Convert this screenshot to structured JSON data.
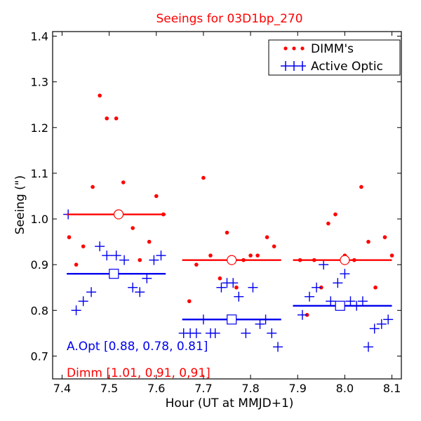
{
  "chart_data": {
    "type": "scatter",
    "title": "Seeings for 03D1bp_270",
    "xlabel": "Hour (UT at MMJD+1)",
    "ylabel": "Seeing (\")",
    "xlim": [
      7.38,
      8.12
    ],
    "ylim": [
      0.65,
      1.41
    ],
    "x_ticks": [
      "7.4",
      "7.5",
      "7.6",
      "7.7",
      "7.8",
      "7.9",
      "8.0",
      "8.1"
    ],
    "y_ticks": [
      "0.7",
      "0.8",
      "0.9",
      "1.0",
      "1.1",
      "1.2",
      "1.3",
      "1.4"
    ],
    "legend": {
      "position": "top-right",
      "entries": [
        "DIMM's",
        "Active Optic"
      ]
    },
    "colors": {
      "dimm": "#ff0000",
      "active_optic": "#0000ee"
    },
    "series": [
      {
        "name": "DIMM's",
        "marker": "dot",
        "points": [
          [
            7.415,
            0.96
          ],
          [
            7.43,
            0.9
          ],
          [
            7.445,
            0.94
          ],
          [
            7.465,
            1.07
          ],
          [
            7.48,
            1.27
          ],
          [
            7.495,
            1.22
          ],
          [
            7.515,
            1.22
          ],
          [
            7.53,
            1.08
          ],
          [
            7.55,
            0.98
          ],
          [
            7.565,
            0.91
          ],
          [
            7.585,
            0.95
          ],
          [
            7.6,
            1.05
          ],
          [
            7.615,
            1.01
          ],
          [
            7.67,
            0.82
          ],
          [
            7.685,
            0.9
          ],
          [
            7.7,
            1.09
          ],
          [
            7.715,
            0.92
          ],
          [
            7.735,
            0.87
          ],
          [
            7.75,
            0.97
          ],
          [
            7.77,
            0.85
          ],
          [
            7.785,
            0.91
          ],
          [
            7.8,
            0.92
          ],
          [
            7.815,
            0.92
          ],
          [
            7.835,
            0.96
          ],
          [
            7.85,
            0.94
          ],
          [
            7.905,
            0.91
          ],
          [
            7.92,
            0.79
          ],
          [
            7.935,
            0.91
          ],
          [
            7.95,
            0.85
          ],
          [
            7.965,
            0.99
          ],
          [
            7.98,
            1.01
          ],
          [
            8.0,
            0.92
          ],
          [
            8.02,
            0.91
          ],
          [
            8.035,
            1.07
          ],
          [
            8.05,
            0.95
          ],
          [
            8.065,
            0.85
          ],
          [
            8.085,
            0.96
          ],
          [
            8.1,
            0.92
          ]
        ]
      },
      {
        "name": "Active Optic",
        "marker": "plus",
        "points": [
          [
            7.413,
            1.01
          ],
          [
            7.43,
            0.8
          ],
          [
            7.445,
            0.82
          ],
          [
            7.462,
            0.84
          ],
          [
            7.48,
            0.94
          ],
          [
            7.495,
            0.92
          ],
          [
            7.515,
            0.92
          ],
          [
            7.532,
            0.91
          ],
          [
            7.55,
            0.85
          ],
          [
            7.565,
            0.84
          ],
          [
            7.58,
            0.87
          ],
          [
            7.595,
            0.91
          ],
          [
            7.61,
            0.92
          ],
          [
            7.658,
            0.75
          ],
          [
            7.672,
            0.75
          ],
          [
            7.685,
            0.75
          ],
          [
            7.7,
            0.78
          ],
          [
            7.715,
            0.75
          ],
          [
            7.725,
            0.75
          ],
          [
            7.738,
            0.85
          ],
          [
            7.75,
            0.86
          ],
          [
            7.763,
            0.86
          ],
          [
            7.775,
            0.83
          ],
          [
            7.79,
            0.75
          ],
          [
            7.805,
            0.85
          ],
          [
            7.82,
            0.77
          ],
          [
            7.832,
            0.78
          ],
          [
            7.845,
            0.75
          ],
          [
            7.858,
            0.72
          ],
          [
            7.91,
            0.79
          ],
          [
            7.925,
            0.83
          ],
          [
            7.94,
            0.85
          ],
          [
            7.955,
            0.9
          ],
          [
            7.97,
            0.82
          ],
          [
            7.985,
            0.86
          ],
          [
            8.0,
            0.88
          ],
          [
            8.012,
            0.82
          ],
          [
            8.025,
            0.81
          ],
          [
            8.038,
            0.82
          ],
          [
            8.05,
            0.72
          ],
          [
            8.063,
            0.76
          ],
          [
            8.078,
            0.77
          ],
          [
            8.092,
            0.78
          ]
        ]
      }
    ],
    "segments": [
      {
        "series": "DIMM's",
        "x_start": 7.41,
        "x_end": 7.62,
        "mean": 1.01,
        "marker_x": 7.52
      },
      {
        "series": "DIMM's",
        "x_start": 7.655,
        "x_end": 7.865,
        "mean": 0.91,
        "marker_x": 7.76
      },
      {
        "series": "DIMM's",
        "x_start": 7.89,
        "x_end": 8.1,
        "mean": 0.91,
        "marker_x": 8.0
      },
      {
        "series": "Active Optic",
        "x_start": 7.41,
        "x_end": 7.62,
        "mean": 0.88,
        "marker_x": 7.51
      },
      {
        "series": "Active Optic",
        "x_start": 7.655,
        "x_end": 7.865,
        "mean": 0.78,
        "marker_x": 7.76
      },
      {
        "series": "Active Optic",
        "x_start": 7.89,
        "x_end": 8.1,
        "mean": 0.81,
        "marker_x": 7.99
      }
    ],
    "annotations": [
      {
        "text": "A.Opt [0.88, 0.78, 0.81]",
        "color": "#0000ee"
      },
      {
        "text": "Dimm [1.01, 0.91, 0,91]",
        "color": "#ff0000"
      }
    ]
  }
}
